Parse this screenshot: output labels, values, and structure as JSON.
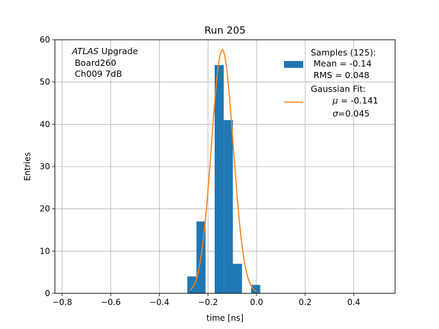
{
  "chart_data": {
    "type": "bar",
    "title": "Run 205",
    "xlabel": "time [ns]",
    "ylabel": "Entries",
    "xlim": [
      -0.83,
      0.57
    ],
    "ylim": [
      0,
      60
    ],
    "x_ticks": [
      -0.8,
      -0.6,
      -0.4,
      -0.2,
      0.0,
      0.2,
      0.4
    ],
    "x_tick_labels": [
      "−0.8",
      "−0.6",
      "−0.4",
      "−0.2",
      "0.0",
      "0.2",
      "0.4"
    ],
    "y_ticks": [
      0,
      10,
      20,
      30,
      40,
      50,
      60
    ],
    "y_tick_labels": [
      "0",
      "10",
      "20",
      "30",
      "40",
      "50",
      "60"
    ],
    "grid": true,
    "legend_position": "top-right",
    "histogram": {
      "name": "Samples (125):",
      "color": "#1f77b4",
      "bins": [
        {
          "x0": -0.285,
          "x1": -0.2475,
          "count": 4
        },
        {
          "x0": -0.2475,
          "x1": -0.21,
          "count": 17
        },
        {
          "x0": -0.21,
          "x1": -0.1725,
          "count": 0
        },
        {
          "x0": -0.1725,
          "x1": -0.135,
          "count": 54
        },
        {
          "x0": -0.135,
          "x1": -0.0975,
          "count": 41
        },
        {
          "x0": -0.0975,
          "x1": -0.06,
          "count": 7
        },
        {
          "x0": -0.06,
          "x1": -0.0225,
          "count": 0
        },
        {
          "x0": -0.0225,
          "x1": 0.015,
          "count": 2
        }
      ]
    },
    "gaussian_fit": {
      "name": "Gaussian Fit:",
      "color": "#ff7f0e",
      "mu": -0.141,
      "sigma": 0.045,
      "amplitude": 57.6,
      "x_range": [
        -0.275,
        0.0
      ]
    },
    "annotation": {
      "line1_italic": "ATLAS",
      "line1_rest": " Upgrade",
      "line2": " Board260",
      "line3": " Ch009 7dB"
    },
    "legend": {
      "samples_title": "Samples (125):",
      "samples_mean": " Mean = -0.14",
      "samples_rms": " RMS = 0.048",
      "fit_title": "Gaussian Fit:",
      "fit_mu_symbol": "μ",
      "fit_mu_value": " = -0.141",
      "fit_sigma_symbol": "σ",
      "fit_sigma_value": "=0.045"
    }
  }
}
